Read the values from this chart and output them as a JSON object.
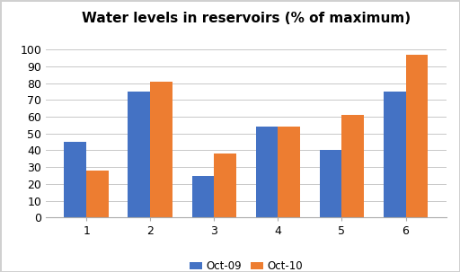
{
  "title": "Water levels in reservoirs (% of maximum)",
  "categories": [
    "1",
    "2",
    "3",
    "4",
    "5",
    "6"
  ],
  "oct09": [
    45,
    75,
    25,
    54,
    40,
    75
  ],
  "oct10": [
    28,
    81,
    38,
    54,
    61,
    97
  ],
  "bar_color_09": "#4472C4",
  "bar_color_10": "#ED7D31",
  "legend_labels": [
    "Oct-09",
    "Oct-10"
  ],
  "ylim": [
    0,
    110
  ],
  "yticks": [
    0,
    10,
    20,
    30,
    40,
    50,
    60,
    70,
    80,
    90,
    100
  ],
  "background_color": "#FFFFFF",
  "plot_bg_color": "#FFFFFF",
  "grid_color": "#C8C8C8",
  "border_color": "#D0D0D0",
  "title_fontsize": 11,
  "tick_fontsize": 9,
  "legend_fontsize": 8.5,
  "bar_width": 0.35
}
